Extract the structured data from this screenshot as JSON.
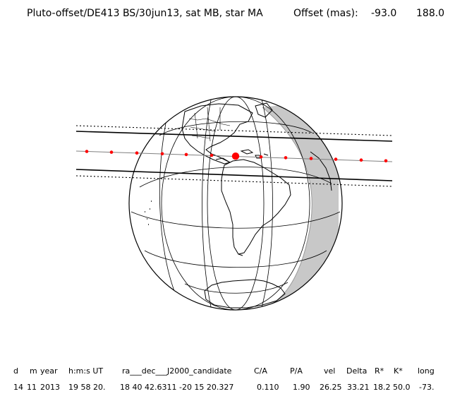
{
  "header": {
    "title": "Pluto-offset/DE413 BS/30jun13, sat MB, star MA",
    "offset_label": "Offset (mas):",
    "offset_ra": "-93.0",
    "offset_dec": "188.0"
  },
  "map": {
    "projection": "orthographic",
    "shadow_path_direction": "west-to-east",
    "colors": {
      "land_outline": "#000000",
      "night_side": "#c8c8c8",
      "centerline": "#808080",
      "time_marks": "#ff0000",
      "background": "#ffffff"
    }
  },
  "table": {
    "headers": [
      "d",
      "m",
      "year",
      "h:m:s UT",
      "ra___dec___J2000_candidate",
      "C/A",
      "P/A",
      "vel",
      "Delta",
      "R*",
      "K*",
      "long"
    ],
    "values": [
      "14",
      "11",
      "2013",
      "19 58 20.",
      "18 40 42.6311 -20 15 20.327",
      "0.110",
      "1.90",
      "26.25",
      "33.21",
      "18.2",
      "50.0",
      "-73."
    ]
  }
}
